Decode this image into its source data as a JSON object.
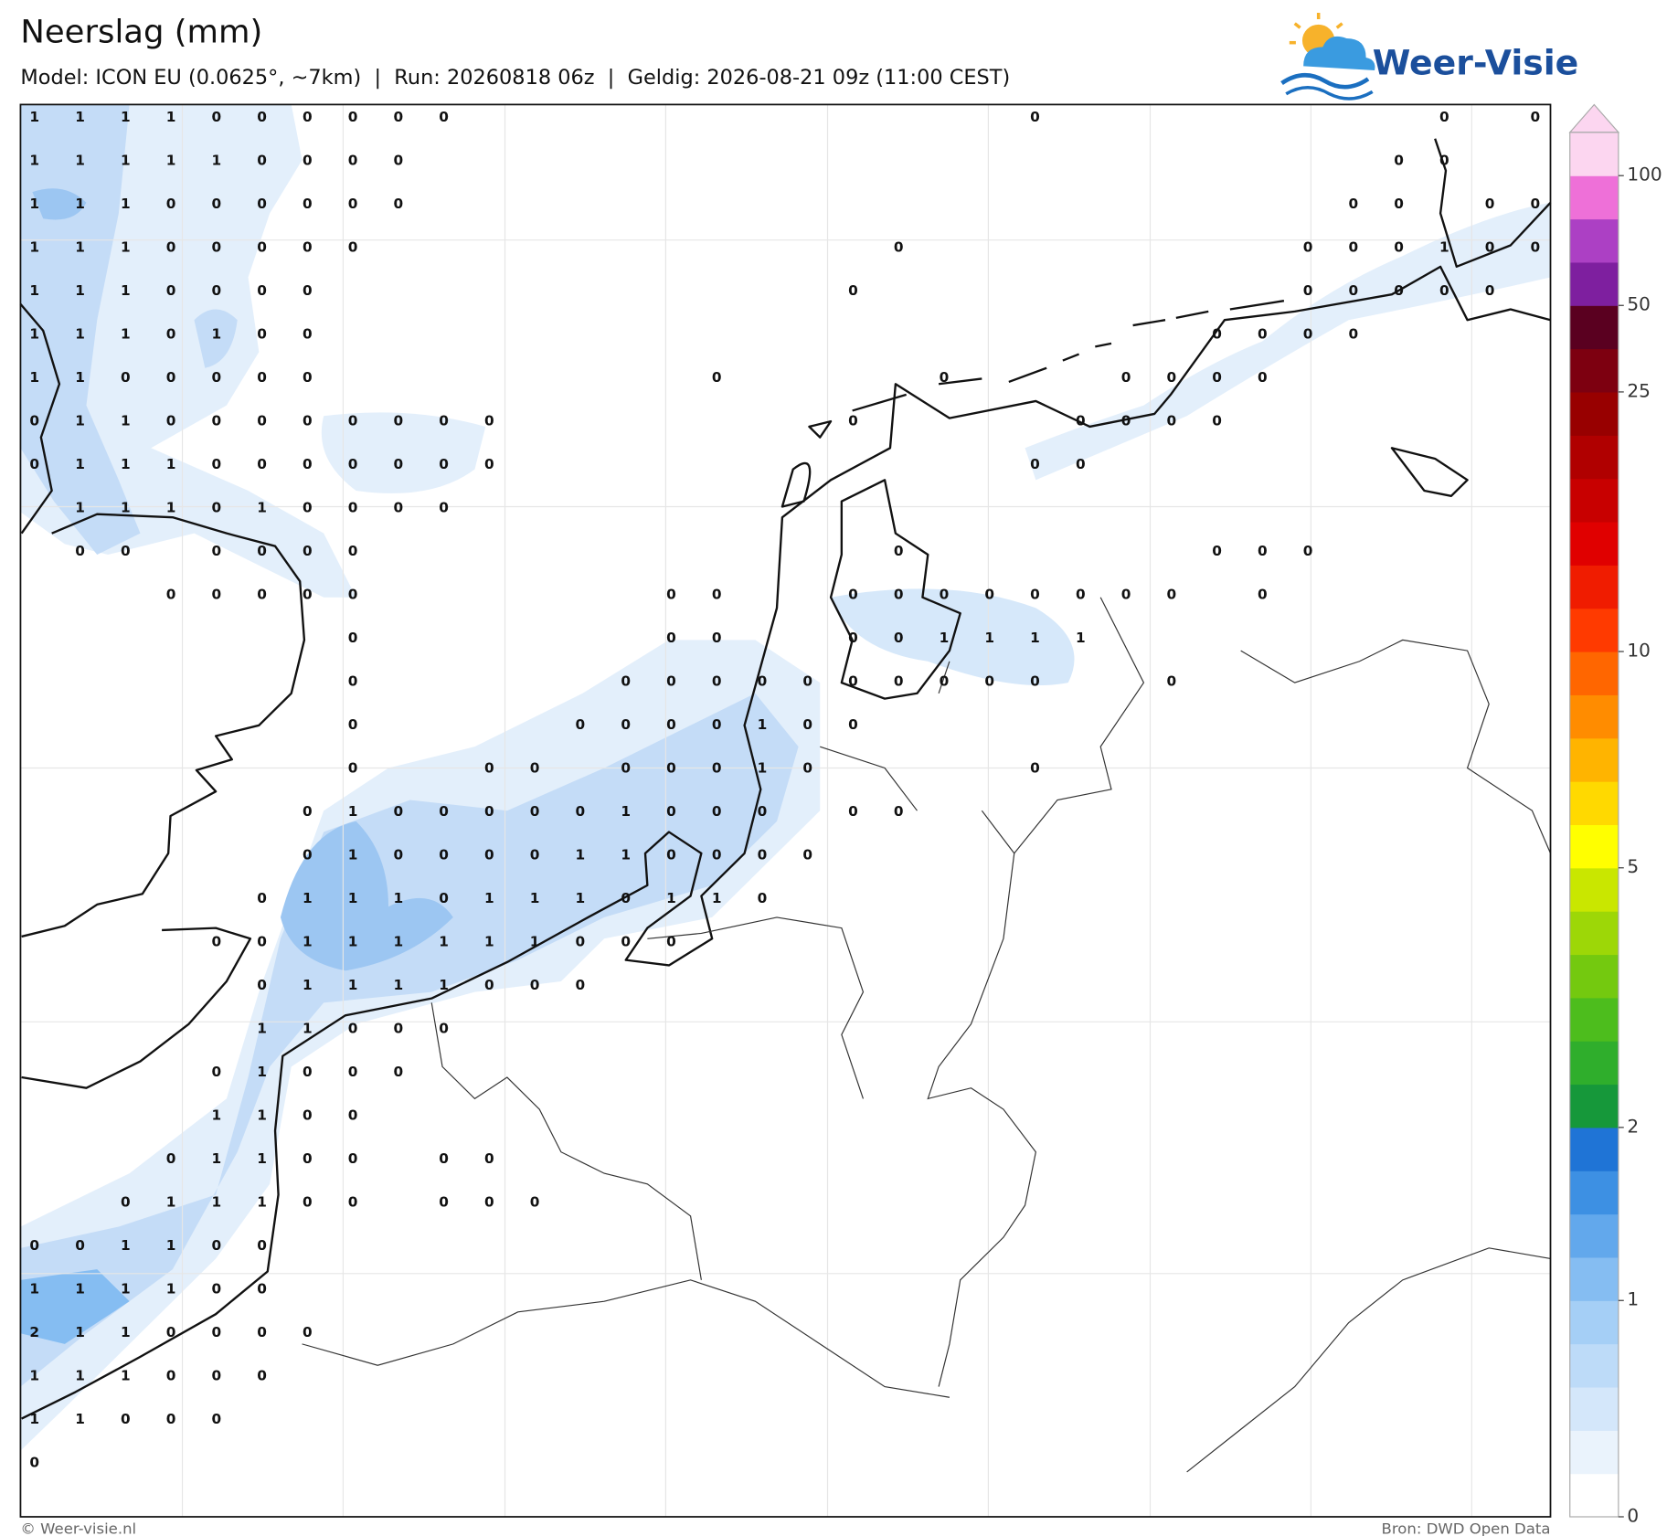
{
  "header": {
    "title": "Neerslag (mm)",
    "subtitle": "Model: ICON EU (0.0625°, ~7km)  |  Run: 20260818 06z  |  Geldig: 2026-08-21 09z (11:00 CEST)"
  },
  "logo": {
    "text": "Weer-Visie"
  },
  "map": {
    "point_values": [
      [
        1,
        1,
        1,
        1,
        0,
        0,
        0,
        0,
        0,
        0,
        null,
        null,
        null,
        null,
        null,
        null,
        null,
        null,
        null,
        null,
        null,
        null,
        0,
        null,
        null,
        null,
        null,
        null,
        null,
        null,
        null,
        0,
        null,
        0
      ],
      [
        1,
        1,
        1,
        1,
        1,
        0,
        0,
        0,
        0,
        null,
        null,
        null,
        null,
        null,
        null,
        null,
        null,
        null,
        null,
        null,
        null,
        null,
        null,
        null,
        null,
        null,
        null,
        null,
        null,
        null,
        0,
        0
      ],
      [
        1,
        1,
        1,
        0,
        0,
        0,
        0,
        0,
        0,
        null,
        null,
        null,
        null,
        null,
        null,
        null,
        null,
        null,
        null,
        null,
        null,
        null,
        null,
        null,
        null,
        null,
        null,
        null,
        null,
        0,
        0,
        null,
        0,
        0
      ],
      [
        1,
        1,
        1,
        0,
        0,
        0,
        0,
        0,
        null,
        null,
        null,
        null,
        null,
        null,
        null,
        null,
        null,
        null,
        null,
        0,
        null,
        null,
        null,
        null,
        null,
        null,
        null,
        null,
        0,
        0,
        0,
        1,
        0,
        0
      ],
      [
        1,
        1,
        1,
        0,
        0,
        0,
        0,
        null,
        null,
        null,
        null,
        null,
        null,
        null,
        null,
        null,
        null,
        null,
        0,
        null,
        null,
        null,
        null,
        null,
        null,
        null,
        null,
        null,
        0,
        0,
        0,
        0,
        0
      ],
      [
        1,
        1,
        1,
        0,
        1,
        0,
        0,
        null,
        null,
        null,
        null,
        null,
        null,
        null,
        null,
        null,
        null,
        null,
        null,
        null,
        null,
        null,
        null,
        null,
        null,
        null,
        0,
        0,
        0,
        0
      ],
      [
        1,
        1,
        0,
        0,
        0,
        0,
        0,
        null,
        null,
        null,
        null,
        null,
        null,
        null,
        null,
        0,
        null,
        null,
        null,
        null,
        0,
        null,
        null,
        null,
        0,
        0,
        0,
        0
      ],
      [
        0,
        1,
        1,
        0,
        0,
        0,
        0,
        0,
        0,
        0,
        0,
        null,
        null,
        null,
        null,
        null,
        null,
        null,
        0,
        null,
        null,
        null,
        null,
        0,
        0,
        0,
        0
      ],
      [
        0,
        1,
        1,
        1,
        0,
        0,
        0,
        0,
        0,
        0,
        0,
        null,
        null,
        null,
        null,
        null,
        null,
        null,
        null,
        null,
        null,
        null,
        0,
        0
      ],
      [
        null,
        1,
        1,
        1,
        0,
        1,
        0,
        0,
        0,
        0
      ],
      [
        null,
        0,
        0,
        null,
        0,
        0,
        0,
        0,
        null,
        null,
        null,
        null,
        null,
        null,
        null,
        null,
        null,
        null,
        null,
        0,
        null,
        null,
        null,
        null,
        null,
        null,
        0,
        0,
        0
      ],
      [
        null,
        null,
        null,
        0,
        0,
        0,
        0,
        0,
        null,
        null,
        null,
        null,
        null,
        null,
        0,
        0,
        null,
        null,
        0,
        0,
        0,
        0,
        0,
        0,
        0,
        0,
        null,
        0
      ],
      [
        null,
        null,
        null,
        null,
        null,
        null,
        null,
        0,
        null,
        null,
        null,
        null,
        null,
        null,
        0,
        0,
        null,
        null,
        0,
        0,
        1,
        1,
        1,
        1
      ],
      [
        null,
        null,
        null,
        null,
        null,
        null,
        null,
        0,
        null,
        null,
        null,
        null,
        null,
        0,
        0,
        0,
        0,
        0,
        0,
        0,
        0,
        0,
        0,
        null,
        null,
        0
      ],
      [
        null,
        null,
        null,
        null,
        null,
        null,
        null,
        0,
        null,
        null,
        null,
        null,
        0,
        0,
        0,
        0,
        1,
        0,
        0
      ],
      [
        null,
        null,
        null,
        null,
        null,
        null,
        null,
        0,
        null,
        null,
        0,
        0,
        null,
        0,
        0,
        0,
        1,
        0,
        null,
        null,
        null,
        null,
        0
      ],
      [
        null,
        null,
        null,
        null,
        null,
        null,
        0,
        1,
        0,
        0,
        0,
        0,
        0,
        1,
        0,
        0,
        0,
        null,
        0,
        0
      ],
      [
        null,
        null,
        null,
        null,
        null,
        null,
        0,
        1,
        0,
        0,
        0,
        0,
        1,
        1,
        0,
        0,
        0,
        0
      ],
      [
        null,
        null,
        null,
        null,
        null,
        0,
        1,
        1,
        1,
        0,
        1,
        1,
        1,
        0,
        1,
        1,
        0
      ],
      [
        null,
        null,
        null,
        null,
        0,
        0,
        1,
        1,
        1,
        1,
        1,
        1,
        0,
        0,
        0
      ],
      [
        null,
        null,
        null,
        null,
        null,
        0,
        1,
        1,
        1,
        1,
        0,
        0,
        0
      ],
      [
        null,
        null,
        null,
        null,
        null,
        1,
        1,
        0,
        0,
        0
      ],
      [
        null,
        null,
        null,
        null,
        0,
        1,
        0,
        0,
        0
      ],
      [
        null,
        null,
        null,
        null,
        1,
        1,
        0,
        0
      ],
      [
        null,
        null,
        null,
        0,
        1,
        1,
        0,
        0,
        null,
        0,
        0
      ],
      [
        null,
        null,
        0,
        1,
        1,
        1,
        0,
        0,
        null,
        0,
        0,
        0
      ],
      [
        0,
        0,
        1,
        1,
        0,
        0
      ],
      [
        1,
        1,
        1,
        1,
        0,
        0
      ],
      [
        2,
        1,
        1,
        0,
        0,
        0,
        0
      ],
      [
        1,
        1,
        1,
        0,
        0,
        0
      ],
      [
        1,
        1,
        0,
        0,
        0
      ],
      [
        0
      ]
    ]
  },
  "colorbar": {
    "colors": [
      "#ffffff",
      "#eaf3fc",
      "#d4e7fa",
      "#bddbf8",
      "#a5cff6",
      "#85bdf2",
      "#62a8ec",
      "#3d90e3",
      "#1f74d6",
      "#16983a",
      "#2fae2c",
      "#4dbd1d",
      "#74c90f",
      "#9dd707",
      "#c9e700",
      "#ffff00",
      "#ffd900",
      "#ffb400",
      "#ff8c00",
      "#ff6600",
      "#ff3a00",
      "#f01c00",
      "#e00000",
      "#c80000",
      "#b00000",
      "#980000",
      "#7d0010",
      "#5a0020",
      "#7e1f9f",
      "#ac40c4",
      "#ee70d8",
      "#fcd6f0"
    ],
    "ticks": [
      0,
      1,
      2,
      5,
      10,
      25,
      50,
      100
    ]
  },
  "footer": {
    "left": "© Weer-visie.nl",
    "right": "Bron: DWD Open Data"
  }
}
